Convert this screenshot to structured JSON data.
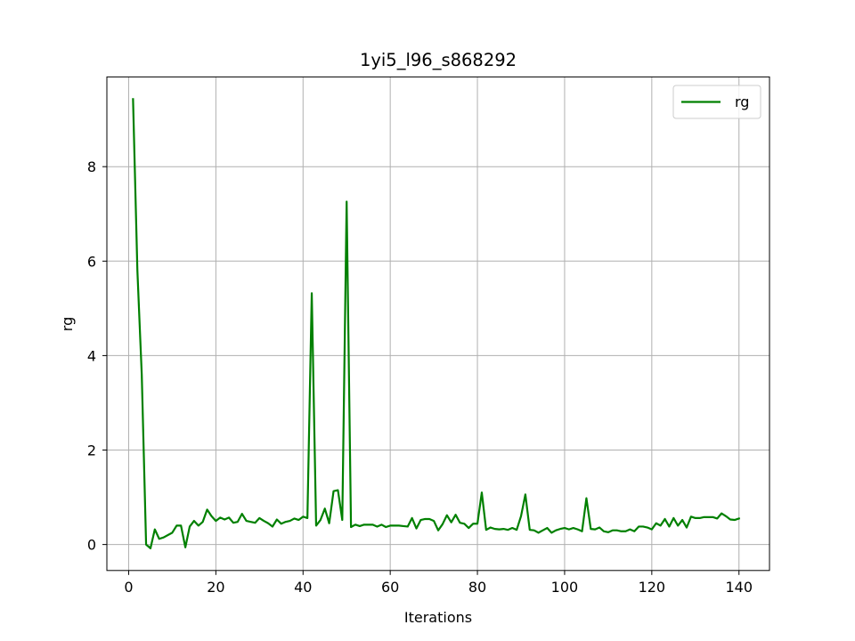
{
  "chart_data": {
    "type": "line",
    "title": "1yi5_l96_s868292",
    "xlabel": "Iterations",
    "ylabel": "rg",
    "xlim": [
      -5,
      147
    ],
    "ylim": [
      -0.55,
      9.9
    ],
    "xticks": [
      0,
      20,
      40,
      60,
      80,
      100,
      120,
      140
    ],
    "yticks": [
      0,
      2,
      4,
      6,
      8
    ],
    "grid": true,
    "legend": {
      "position": "top-right"
    },
    "series": [
      {
        "name": "rg",
        "color": "#008000",
        "x": [
          1,
          2,
          3,
          4,
          5,
          6,
          7,
          8,
          9,
          10,
          11,
          12,
          13,
          14,
          15,
          16,
          17,
          18,
          19,
          20,
          21,
          22,
          23,
          24,
          25,
          26,
          27,
          28,
          29,
          30,
          31,
          32,
          33,
          34,
          35,
          36,
          37,
          38,
          39,
          40,
          41,
          42,
          43,
          44,
          45,
          46,
          47,
          48,
          49,
          50,
          51,
          52,
          53,
          54,
          55,
          56,
          57,
          58,
          59,
          60,
          61,
          62,
          63,
          64,
          65,
          66,
          67,
          68,
          69,
          70,
          71,
          72,
          73,
          74,
          75,
          76,
          77,
          78,
          79,
          80,
          81,
          82,
          83,
          84,
          85,
          86,
          87,
          88,
          89,
          90,
          91,
          92,
          93,
          94,
          95,
          96,
          97,
          98,
          99,
          100,
          101,
          102,
          103,
          104,
          105,
          106,
          107,
          108,
          109,
          110,
          111,
          112,
          113,
          114,
          115,
          116,
          117,
          118,
          119,
          120,
          121,
          122,
          123,
          124,
          125,
          126,
          127,
          128,
          129,
          130,
          131,
          132,
          133,
          134,
          135,
          136,
          137,
          138,
          139,
          140
        ],
        "y": [
          9.43,
          5.8,
          3.6,
          0.0,
          -0.08,
          0.32,
          0.12,
          0.15,
          0.2,
          0.25,
          0.4,
          0.4,
          -0.06,
          0.38,
          0.5,
          0.4,
          0.48,
          0.74,
          0.6,
          0.5,
          0.57,
          0.53,
          0.57,
          0.46,
          0.48,
          0.65,
          0.5,
          0.48,
          0.46,
          0.56,
          0.5,
          0.45,
          0.38,
          0.53,
          0.44,
          0.48,
          0.5,
          0.55,
          0.52,
          0.59,
          0.56,
          5.32,
          0.4,
          0.52,
          0.76,
          0.45,
          1.13,
          1.15,
          0.52,
          7.26,
          0.37,
          0.42,
          0.39,
          0.42,
          0.42,
          0.42,
          0.38,
          0.42,
          0.37,
          0.4,
          0.4,
          0.4,
          0.39,
          0.38,
          0.56,
          0.34,
          0.52,
          0.54,
          0.54,
          0.5,
          0.3,
          0.43,
          0.62,
          0.47,
          0.63,
          0.46,
          0.44,
          0.35,
          0.44,
          0.44,
          1.1,
          0.31,
          0.36,
          0.33,
          0.32,
          0.33,
          0.31,
          0.35,
          0.31,
          0.6,
          1.06,
          0.31,
          0.3,
          0.25,
          0.3,
          0.35,
          0.25,
          0.3,
          0.33,
          0.35,
          0.32,
          0.35,
          0.32,
          0.28,
          0.98,
          0.33,
          0.32,
          0.36,
          0.28,
          0.26,
          0.3,
          0.3,
          0.28,
          0.28,
          0.32,
          0.28,
          0.38,
          0.38,
          0.36,
          0.32,
          0.45,
          0.4,
          0.54,
          0.38,
          0.56,
          0.4,
          0.52,
          0.36,
          0.59,
          0.56,
          0.56,
          0.58,
          0.58,
          0.58,
          0.55,
          0.66,
          0.6,
          0.53,
          0.52,
          0.55
        ]
      }
    ]
  }
}
